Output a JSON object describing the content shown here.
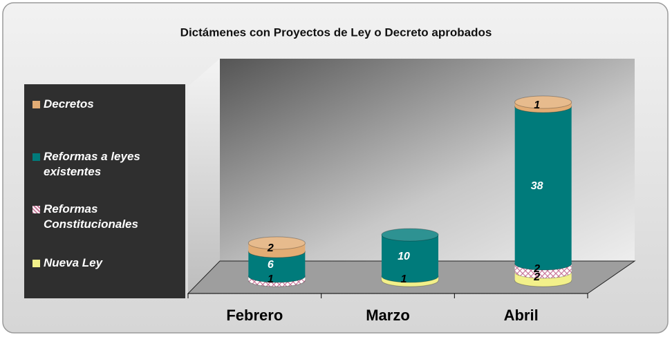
{
  "chart_data": {
    "type": "bar3d_stacked",
    "title": "Dictámenes con  Proyectos de Ley o Decreto aprobados",
    "categories": [
      "Febrero",
      "Marzo",
      "Abril"
    ],
    "series": [
      {
        "name": "Nueva Ley",
        "color": "#f2f08a",
        "values": [
          null,
          1,
          2
        ]
      },
      {
        "name": "Reformas Constitucionales",
        "color": "#c9789a",
        "pattern": "crosshatch",
        "values": [
          1,
          null,
          2
        ]
      },
      {
        "name": "Reformas a leyes existentes",
        "color": "#007b7b",
        "values": [
          6,
          10,
          38
        ]
      },
      {
        "name": "Decretos",
        "color": "#e2ac74",
        "values": [
          2,
          null,
          1
        ]
      }
    ],
    "legend": "left"
  }
}
